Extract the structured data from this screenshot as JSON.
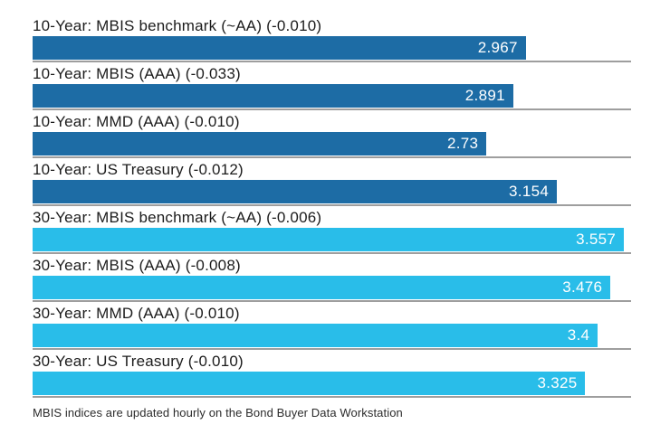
{
  "chart_data": {
    "type": "bar",
    "orientation": "horizontal",
    "title": "",
    "categories": [
      "10-Year: MBIS benchmark (~AA) (-0.010)",
      "10-Year: MBIS (AAA) (-0.033)",
      "10-Year: MMD (AAA) (-0.010)",
      "10-Year: US Treasury (-0.012)",
      "30-Year: MBIS benchmark (~AA) (-0.006)",
      "30-Year: MBIS (AAA) (-0.008)",
      "30-Year: MMD (AAA) (-0.010)",
      "30-Year: US Treasury (-0.010)"
    ],
    "values": [
      2.967,
      2.891,
      2.73,
      3.154,
      3.557,
      3.476,
      3.4,
      3.325
    ],
    "value_labels": [
      "2.967",
      "2.891",
      "2.73",
      "3.154",
      "3.557",
      "3.476",
      "3.4",
      "3.325"
    ],
    "groups": [
      "10-Year",
      "10-Year",
      "10-Year",
      "10-Year",
      "30-Year",
      "30-Year",
      "30-Year",
      "30-Year"
    ],
    "bar_colors": [
      "#1d6ca5",
      "#1d6ca5",
      "#1d6ca5",
      "#1d6ca5",
      "#29bde9",
      "#29bde9",
      "#29bde9",
      "#29bde9"
    ],
    "xlim": [
      0,
      3.6
    ],
    "grid": false,
    "legend": "none",
    "value_label_position": "inside-end",
    "footnote": "MBIS indices are updated hourly on the Bond Buyer Data Workstation",
    "colors": {
      "ten_year_bar": "#1d6ca5",
      "thirty_year_bar": "#29bde9",
      "separator_line": "#9e9e9e",
      "label_text": "#1c1c1c",
      "value_text": "#ffffff",
      "background": "#ffffff"
    }
  }
}
